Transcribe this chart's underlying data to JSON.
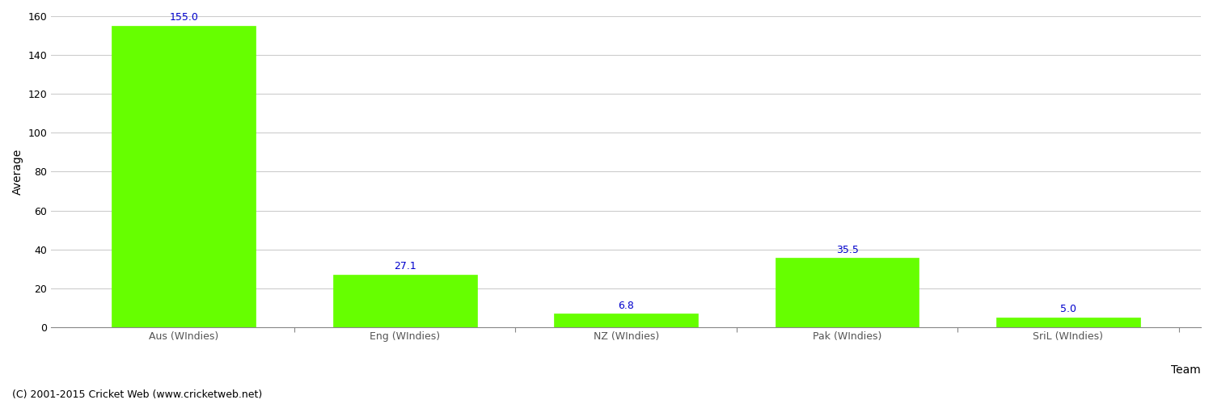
{
  "categories": [
    "Aus (WIndies)",
    "Eng (WIndies)",
    "NZ (WIndies)",
    "Pak (WIndies)",
    "SriL (WIndies)"
  ],
  "values": [
    155.0,
    27.1,
    6.8,
    35.5,
    5.0
  ],
  "bar_color": "#66ff00",
  "bar_edge_color": "#66ff00",
  "label_color": "#0000cc",
  "ylabel": "Average",
  "xlabel": "Team",
  "ylim": [
    0,
    160
  ],
  "yticks": [
    0,
    20,
    40,
    60,
    80,
    100,
    120,
    140,
    160
  ],
  "label_fontsize": 9,
  "axis_label_fontsize": 10,
  "tick_fontsize": 9,
  "footnote": "(C) 2001-2015 Cricket Web (www.cricketweb.net)",
  "footnote_fontsize": 9,
  "background_color": "#ffffff",
  "grid_color": "#cccccc"
}
